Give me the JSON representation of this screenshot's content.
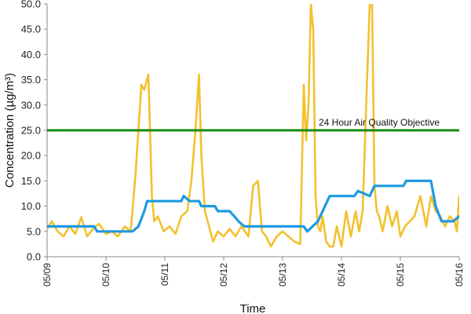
{
  "chart_data": {
    "type": "line",
    "title": "",
    "xlabel": "Time",
    "ylabel": "Concentration (µg/m³)",
    "ylim": [
      0,
      50
    ],
    "y_ticks": [
      "0.0",
      "5.0",
      "10.0",
      "15.0",
      "20.0",
      "25.0",
      "30.0",
      "35.0",
      "40.0",
      "45.0",
      "50.0"
    ],
    "x_ticks": [
      "05/09",
      "05/10",
      "05/11",
      "05/12",
      "05/13",
      "05/14",
      "05/15",
      "05/16"
    ],
    "xlim_days": [
      0,
      7
    ],
    "grid": false,
    "legend": "none",
    "annotation": "24 Hour Air Quality Objective",
    "series": [
      {
        "color": "#f2c12e",
        "x": [
          0.0,
          0.08,
          0.18,
          0.28,
          0.38,
          0.48,
          0.58,
          0.68,
          0.78,
          0.88,
          1.0,
          1.1,
          1.2,
          1.32,
          1.42,
          1.5,
          1.55,
          1.6,
          1.65,
          1.72,
          1.78,
          1.82,
          1.88,
          1.98,
          2.08,
          2.18,
          2.28,
          2.38,
          2.45,
          2.52,
          2.58,
          2.62,
          2.68,
          2.75,
          2.82,
          2.9,
          3.0,
          3.1,
          3.2,
          3.3,
          3.42,
          3.5,
          3.58,
          3.65,
          3.72,
          3.8,
          3.9,
          4.0,
          4.1,
          4.2,
          4.3,
          4.36,
          4.4,
          4.44,
          4.48,
          4.52,
          4.56,
          4.6,
          4.64,
          4.68,
          4.74,
          4.8,
          4.86,
          4.92,
          5.0,
          5.08,
          5.16,
          5.24,
          5.3,
          5.36,
          5.42,
          5.48,
          5.52,
          5.56,
          5.6,
          5.64,
          5.7,
          5.78,
          5.86,
          5.94,
          6.0,
          6.08,
          6.16,
          6.24,
          6.34,
          6.44,
          6.52,
          6.6,
          6.68,
          6.76,
          6.84,
          6.92,
          6.96,
          7.0
        ],
        "values": [
          5.5,
          7.0,
          5.0,
          4.0,
          6.0,
          4.5,
          7.8,
          4.0,
          5.5,
          6.5,
          4.5,
          5.0,
          4.0,
          6.0,
          5.0,
          16.0,
          25.0,
          34.0,
          33.0,
          36.0,
          12.0,
          7.0,
          8.0,
          5.0,
          6.0,
          4.5,
          8.0,
          9.0,
          15.0,
          25.0,
          36.0,
          20.0,
          9.0,
          6.0,
          3.0,
          5.0,
          4.0,
          5.5,
          4.0,
          6.0,
          4.0,
          14.0,
          15.0,
          5.0,
          4.0,
          2.0,
          4.0,
          5.0,
          4.0,
          3.0,
          2.5,
          34.0,
          23.0,
          30.0,
          50.0,
          45.0,
          12.0,
          6.0,
          5.0,
          8.0,
          3.0,
          2.0,
          2.0,
          6.0,
          2.0,
          9.0,
          4.0,
          9.0,
          5.0,
          9.0,
          30.0,
          50.0,
          50.0,
          14.0,
          9.0,
          8.0,
          5.0,
          10.0,
          6.0,
          9.0,
          4.0,
          6.0,
          7.0,
          8.0,
          12.0,
          6.0,
          12.0,
          9.0,
          8.0,
          6.0,
          8.0,
          7.0,
          5.0,
          12.0
        ]
      },
      {
        "color": "#1f9ae0",
        "x": [
          0.0,
          0.8,
          0.85,
          1.45,
          1.55,
          1.65,
          1.7,
          2.28,
          2.32,
          2.42,
          2.58,
          2.62,
          2.85,
          2.9,
          3.1,
          3.18,
          3.25,
          3.35,
          3.4,
          4.36,
          4.42,
          4.6,
          4.72,
          4.8,
          5.22,
          5.28,
          5.48,
          5.56,
          6.05,
          6.1,
          6.52,
          6.6,
          6.7,
          6.9,
          7.0
        ],
        "values": [
          6.0,
          6.0,
          5.0,
          5.0,
          6.0,
          9.0,
          11.0,
          11.0,
          12.0,
          11.0,
          11.0,
          10.0,
          10.0,
          9.0,
          9.0,
          8.0,
          7.0,
          6.0,
          6.0,
          6.0,
          5.0,
          7.0,
          10.0,
          12.0,
          12.0,
          13.0,
          12.0,
          14.0,
          14.0,
          15.0,
          15.0,
          10.0,
          7.0,
          7.0,
          8.0
        ]
      },
      {
        "color": "#178a17",
        "x": [
          0,
          7
        ],
        "values": [
          25,
          25
        ]
      }
    ]
  }
}
